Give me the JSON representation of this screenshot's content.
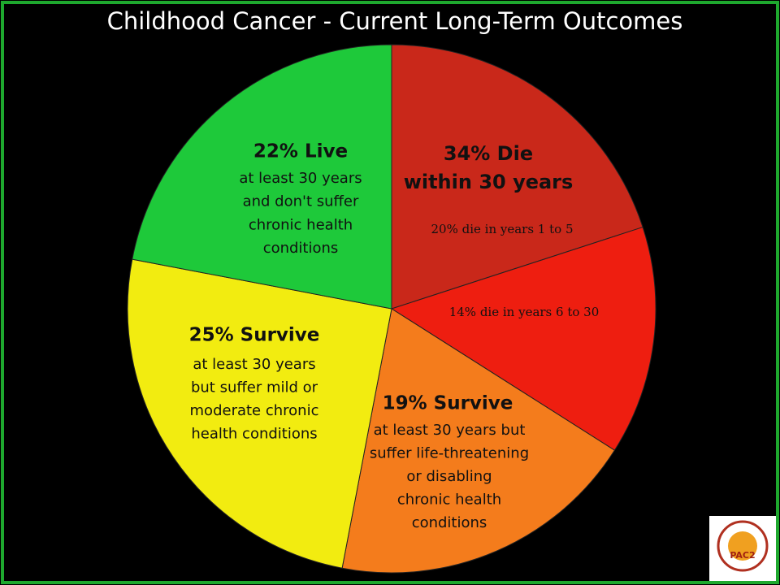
{
  "chart_data": {
    "type": "pie",
    "title": "Childhood Cancer - Current Long-Term Outcomes",
    "values": [
      20,
      14,
      19,
      25,
      22
    ],
    "value_labels": [
      "20% die in years 1 to 5",
      "14% die in years 6 to 30",
      "19% Survive",
      "25% Survive",
      "22% Live"
    ],
    "colors": [
      "#c9281a",
      "#ee1e10",
      "#f47c1c",
      "#f2ec10",
      "#1ec93a"
    ],
    "annotations": [
      [
        "34% Die",
        "within 30 years"
      ],
      [
        "at least 30 years but",
        "suffer life-threatening",
        "or disabling",
        "chronic health",
        "conditions"
      ],
      [
        "at least 30 years",
        "but suffer mild or",
        "moderate chronic",
        "health conditions"
      ],
      [
        "at least 30 years",
        "and don't suffer",
        "chronic health",
        "conditions"
      ]
    ],
    "logo": "PAC2"
  }
}
